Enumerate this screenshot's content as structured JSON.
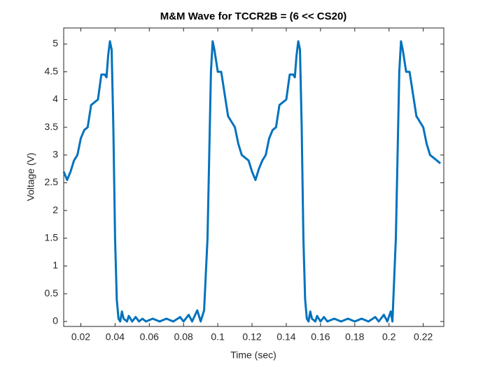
{
  "chart_data": {
    "type": "line",
    "title": "M&M Wave for TCCR2B = (6 << CS20)",
    "xlabel": "Time (sec)",
    "ylabel": "Voltage (V)",
    "xlim": [
      0.01,
      0.232
    ],
    "ylim": [
      -0.09,
      5.29
    ],
    "xticks": [
      0.02,
      0.04,
      0.06,
      0.08,
      0.1,
      0.12,
      0.14,
      0.16,
      0.18,
      0.2,
      0.22
    ],
    "yticks": [
      0,
      0.5,
      1,
      1.5,
      2,
      2.5,
      3,
      3.5,
      4,
      4.5,
      5
    ],
    "series": [
      {
        "color": "#0072bd",
        "x": [
          0.01,
          0.012,
          0.014,
          0.016,
          0.018,
          0.02,
          0.022,
          0.024,
          0.026,
          0.028,
          0.03,
          0.032,
          0.034,
          0.035,
          0.036,
          0.037,
          0.038,
          0.039,
          0.04,
          0.041,
          0.042,
          0.043,
          0.044,
          0.045,
          0.047,
          0.048,
          0.05,
          0.052,
          0.054,
          0.056,
          0.058,
          0.062,
          0.066,
          0.07,
          0.074,
          0.078,
          0.08,
          0.083,
          0.085,
          0.088,
          0.09,
          0.092,
          0.094,
          0.096,
          0.097,
          0.098,
          0.1,
          0.102,
          0.104,
          0.106,
          0.108,
          0.11,
          0.112,
          0.114,
          0.116,
          0.118,
          0.12,
          0.122,
          0.124,
          0.126,
          0.128,
          0.13,
          0.132,
          0.134,
          0.136,
          0.138,
          0.14,
          0.142,
          0.144,
          0.145,
          0.146,
          0.147,
          0.148,
          0.149,
          0.15,
          0.151,
          0.152,
          0.153,
          0.154,
          0.155,
          0.157,
          0.158,
          0.16,
          0.162,
          0.164,
          0.168,
          0.172,
          0.176,
          0.18,
          0.184,
          0.188,
          0.192,
          0.194,
          0.197,
          0.199,
          0.201,
          0.202,
          0.204,
          0.206,
          0.207,
          0.208,
          0.21,
          0.212,
          0.214,
          0.216,
          0.218,
          0.22,
          0.222,
          0.224,
          0.226,
          0.228,
          0.23
        ],
        "values": [
          2.7,
          2.55,
          2.7,
          2.9,
          3.0,
          3.3,
          3.45,
          3.5,
          3.9,
          3.95,
          4.0,
          4.45,
          4.45,
          4.4,
          4.8,
          5.05,
          4.9,
          3.5,
          1.5,
          0.4,
          0.05,
          0.0,
          0.18,
          0.05,
          0.0,
          0.1,
          0.0,
          0.08,
          0.0,
          0.05,
          0.0,
          0.05,
          0.0,
          0.05,
          0.0,
          0.08,
          0.0,
          0.12,
          0.0,
          0.2,
          0.0,
          0.2,
          1.5,
          4.5,
          5.05,
          4.9,
          4.5,
          4.5,
          4.1,
          3.7,
          3.6,
          3.5,
          3.2,
          3.0,
          2.95,
          2.9,
          2.7,
          2.55,
          2.75,
          2.9,
          3.0,
          3.3,
          3.45,
          3.5,
          3.9,
          3.95,
          4.0,
          4.45,
          4.45,
          4.4,
          4.8,
          5.05,
          4.9,
          3.5,
          1.5,
          0.4,
          0.05,
          0.0,
          0.18,
          0.05,
          0.0,
          0.1,
          0.0,
          0.08,
          0.0,
          0.05,
          0.0,
          0.05,
          0.0,
          0.05,
          0.0,
          0.08,
          0.0,
          0.12,
          0.0,
          0.18,
          0.0,
          1.5,
          4.5,
          5.05,
          4.9,
          4.5,
          4.5,
          4.1,
          3.7,
          3.6,
          3.5,
          3.2,
          3.0,
          2.95,
          2.9,
          2.85
        ]
      }
    ]
  }
}
